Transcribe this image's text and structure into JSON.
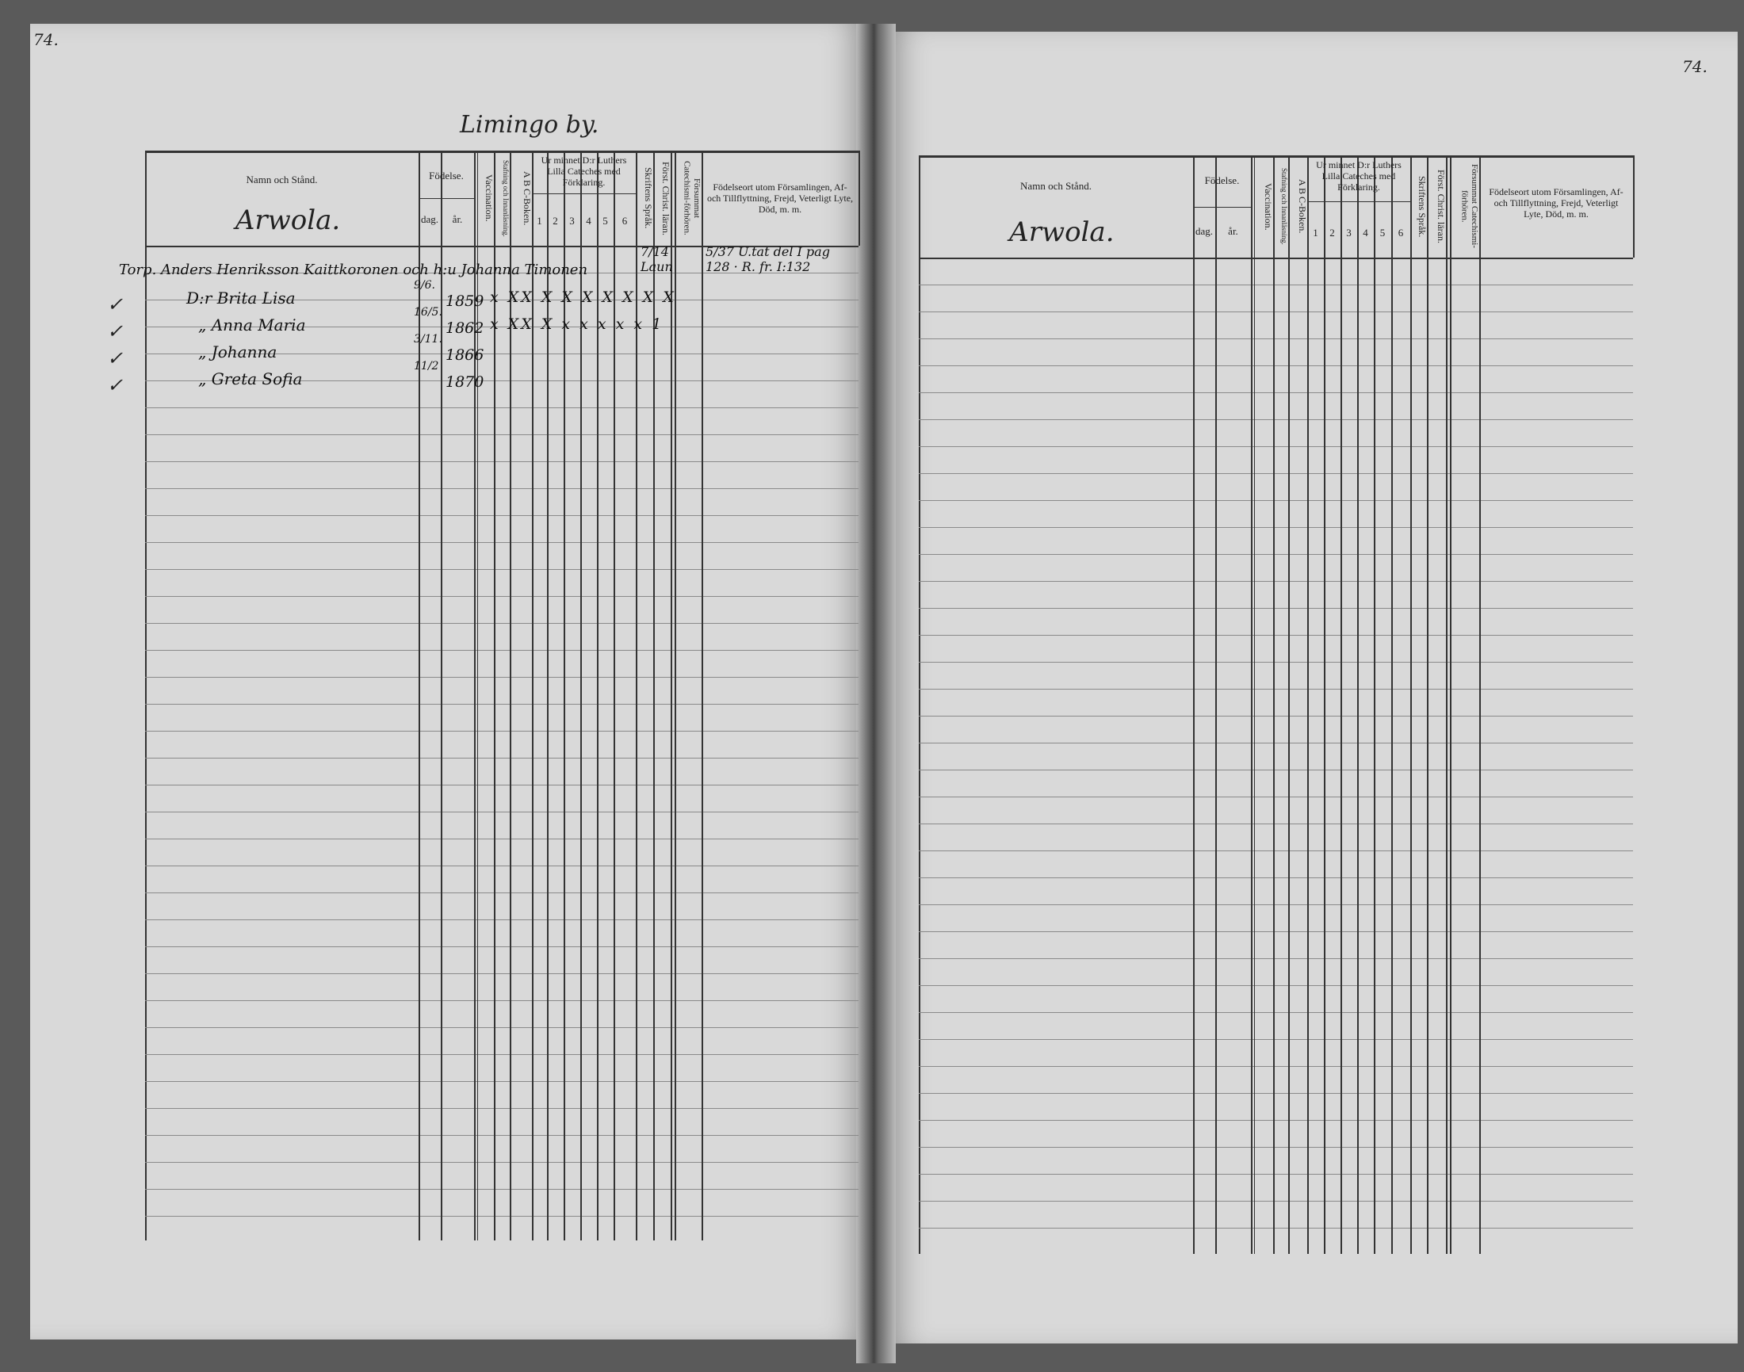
{
  "left_page": {
    "page_number": "74.",
    "village_title": "Limingo by.",
    "farm_name": "Arwola.",
    "headers": {
      "name": "Namn och Stånd.",
      "birth": "Födelse.",
      "day": "dag.",
      "year": "år.",
      "vaccination": "Vaccination.",
      "spelling": "Stafning och Innanläsning.",
      "abc": "A B C-Boken.",
      "catechism": "Ur minnet D:r Luthers Lilla Cateches med Förklaring.",
      "cat_cols": [
        "1",
        "2",
        "3",
        "4",
        "5",
        "6"
      ],
      "scripture": "Skriftens Språk.",
      "christ": "Först. Christ. läran.",
      "missed": "Försummat Catechismi-förhören.",
      "notes": "Födelseort utom Församlingen, Af- och Tillflyttning, Frejd, Veterligt Lyte, Död, m. m."
    },
    "entries": [
      {
        "name": "Torp. Anders Henriksson Kaittkoronen och h:u Johanna Timonen",
        "day": "",
        "year": "",
        "marks": "",
        "extra": "7/14 Laun",
        "note": "5/37 U.tat del I pag 128 · R. fr. I:132",
        "check": ""
      },
      {
        "name": "D:r Brita Lisa",
        "day": "9/6.",
        "year": "1859",
        "marks": "x XX X X X X X X X",
        "extra": "",
        "note": "",
        "check": "✓"
      },
      {
        "name": "„ Anna Maria",
        "day": "16/5.",
        "year": "1862",
        "marks": "x XX X x x x x x 1",
        "extra": "",
        "note": "",
        "check": "✓"
      },
      {
        "name": "„ Johanna",
        "day": "3/11.",
        "year": "1866",
        "marks": "",
        "extra": "",
        "note": "",
        "check": "✓"
      },
      {
        "name": "„ Greta Sofia",
        "day": "11/2",
        "year": "1870",
        "marks": "",
        "extra": "",
        "note": "",
        "check": "✓"
      }
    ]
  },
  "right_page": {
    "page_number": "74.",
    "farm_name": "Arwola.",
    "headers": {
      "name": "Namn och Stånd.",
      "birth": "Födelse.",
      "day": "dag.",
      "year": "år.",
      "vaccination": "Vaccination.",
      "spelling": "Stafning och Innanläsning.",
      "abc": "A B C-Boken.",
      "catechism": "Ur minnet D:r Luthers Lilla Cateches med Förklaring.",
      "cat_cols": [
        "1",
        "2",
        "3",
        "4",
        "5",
        "6"
      ],
      "scripture": "Skriftens Språk.",
      "christ": "Först. Christ. läran.",
      "missed": "Försummat Catechismi-förhören.",
      "notes": "Födelseort utom Församlingen, Af- och Tillflyttning, Frejd, Veterligt Lyte, Död, m. m."
    }
  }
}
